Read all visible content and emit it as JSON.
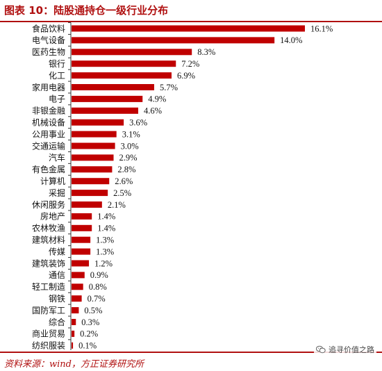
{
  "header": {
    "title": "图表 10：陆股通持仓一级行业分布"
  },
  "footer": {
    "source": "资料来源：wind，方正证券研究所"
  },
  "watermark": {
    "text": "追寻价值之路",
    "icon": "wechat-icon"
  },
  "colors": {
    "bar": "#c00000",
    "accent": "#b01010"
  },
  "chart_data": {
    "type": "bar",
    "orientation": "horizontal",
    "categories": [
      "食品饮料",
      "电气设备",
      "医药生物",
      "银行",
      "化工",
      "家用电器",
      "电子",
      "非银金融",
      "机械设备",
      "公用事业",
      "交通运输",
      "汽车",
      "有色金属",
      "计算机",
      "采掘",
      "休闲服务",
      "房地产",
      "农林牧渔",
      "建筑材料",
      "传媒",
      "建筑装饰",
      "通信",
      "轻工制造",
      "钢铁",
      "国防军工",
      "综合",
      "商业贸易",
      "纺织服装"
    ],
    "values": [
      16.1,
      14.0,
      8.3,
      7.2,
      6.9,
      5.7,
      4.9,
      4.6,
      3.6,
      3.1,
      3.0,
      2.9,
      2.8,
      2.6,
      2.5,
      2.1,
      1.4,
      1.4,
      1.3,
      1.3,
      1.2,
      0.9,
      0.8,
      0.7,
      0.5,
      0.3,
      0.2,
      0.1
    ],
    "value_labels": [
      "16.1%",
      "14.0%",
      "8.3%",
      "7.2%",
      "6.9%",
      "5.7%",
      "4.9%",
      "4.6%",
      "3.6%",
      "3.1%",
      "3.0%",
      "2.9%",
      "2.8%",
      "2.6%",
      "2.5%",
      "2.1%",
      "1.4%",
      "1.4%",
      "1.3%",
      "1.3%",
      "1.2%",
      "0.9%",
      "0.8%",
      "0.7%",
      "0.5%",
      "0.3%",
      "0.2%",
      "0.1%"
    ],
    "unit": "%",
    "xlim": [
      0,
      16.1
    ],
    "title": "",
    "xlabel": "",
    "ylabel": "",
    "grid": false,
    "legend": false
  }
}
